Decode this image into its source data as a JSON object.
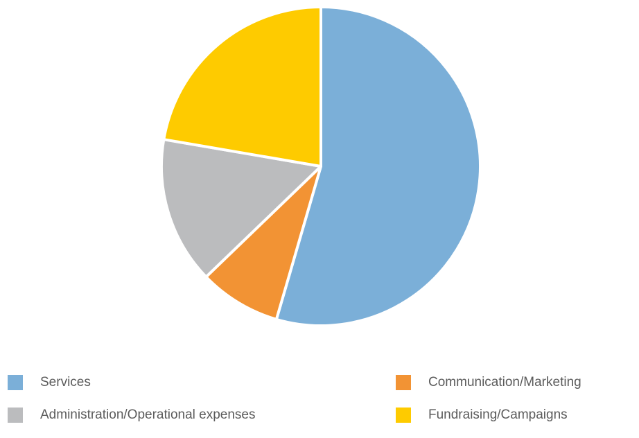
{
  "chart_data": {
    "type": "pie",
    "title": "",
    "slices": [
      {
        "label": "Services",
        "value": 54.5,
        "color": "#7bafd8"
      },
      {
        "label": "Communication/Marketing",
        "value": 8.3,
        "color": "#f29334"
      },
      {
        "label": "Administration/Operational expenses",
        "value": 14.9,
        "color": "#bbbcbe"
      },
      {
        "label": "Fundraising/Campaigns",
        "value": 22.3,
        "color": "#fecb00"
      }
    ],
    "legend_placement": "bottom"
  }
}
